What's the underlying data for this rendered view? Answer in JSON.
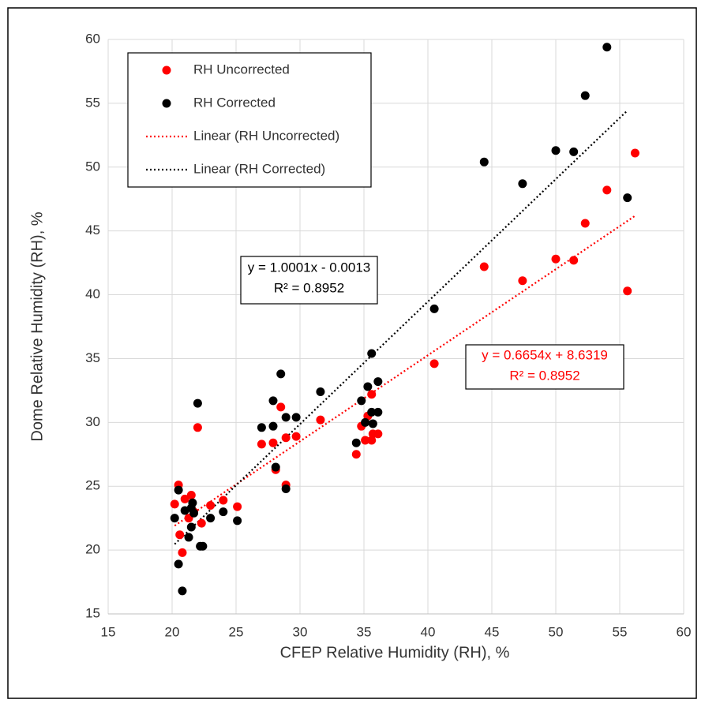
{
  "chart_data": {
    "type": "scatter",
    "xlabel": "CFEP Relative Humidity (RH), %",
    "ylabel": "Dome Relative Humidity (RH), %",
    "xlim": [
      15,
      60
    ],
    "xticks": [
      15,
      20,
      25,
      30,
      35,
      40,
      45,
      50,
      55,
      60
    ],
    "ylim": [
      15,
      60
    ],
    "yticks": [
      15,
      20,
      25,
      30,
      35,
      40,
      45,
      50,
      55,
      60
    ],
    "grid": true,
    "legend": "upper left",
    "series": [
      {
        "name": "RH Uncorrected",
        "color": "#ff0000",
        "trendline": "Linear (RH Uncorrected)",
        "trendline_label": [
          "y = 0.6654x + 8.6319",
          "R² = 0.8952"
        ],
        "x": [
          20.2,
          20.5,
          20.6,
          20.8,
          21.0,
          21.3,
          21.5,
          21.7,
          22.0,
          22.3,
          23.0,
          24.0,
          25.1,
          27.0,
          27.9,
          28.1,
          28.5,
          28.9,
          28.9,
          29.7,
          31.6,
          34.4,
          34.8,
          35.1,
          35.3,
          35.6,
          35.6,
          35.7,
          36.1,
          40.5,
          44.4,
          47.4,
          50.0,
          51.4,
          52.3,
          54.0,
          55.6,
          56.2
        ],
        "values": [
          23.6,
          25.1,
          21.2,
          19.8,
          24.0,
          22.5,
          24.3,
          23.0,
          29.6,
          22.1,
          23.5,
          23.9,
          23.4,
          28.3,
          28.4,
          26.3,
          31.2,
          28.8,
          25.1,
          28.9,
          30.2,
          27.5,
          29.7,
          28.6,
          30.5,
          28.6,
          32.2,
          29.1,
          29.1,
          34.6,
          42.2,
          41.1,
          42.8,
          42.7,
          45.6,
          48.2,
          40.3,
          51.1
        ]
      },
      {
        "name": "RH Corrected",
        "color": "#000000",
        "trendline": "Linear (RH Corrected)",
        "trendline_label": [
          "y = 1.0001x - 0.0013",
          "R² = 0.8952"
        ],
        "x": [
          20.2,
          20.5,
          20.5,
          20.8,
          21.0,
          21.3,
          21.5,
          21.5,
          21.6,
          21.7,
          22.0,
          22.2,
          22.4,
          23.0,
          24.0,
          25.1,
          27.0,
          27.9,
          27.9,
          28.1,
          28.5,
          28.9,
          28.9,
          29.7,
          31.6,
          34.4,
          34.8,
          35.1,
          35.3,
          35.6,
          35.6,
          35.7,
          36.1,
          36.1,
          40.5,
          44.4,
          47.4,
          50.0,
          51.4,
          52.3,
          54.0,
          55.6
        ],
        "values": [
          22.5,
          24.7,
          18.9,
          16.8,
          23.1,
          21.0,
          23.3,
          21.8,
          23.7,
          22.9,
          31.5,
          20.3,
          20.3,
          22.5,
          23.0,
          22.3,
          29.6,
          29.7,
          31.7,
          26.5,
          33.8,
          30.4,
          24.8,
          30.4,
          32.4,
          28.4,
          31.7,
          30.0,
          32.8,
          30.8,
          35.4,
          29.9,
          33.2,
          30.8,
          38.9,
          50.4,
          48.7,
          51.3,
          51.2,
          55.6,
          59.4,
          47.6
        ]
      }
    ]
  }
}
